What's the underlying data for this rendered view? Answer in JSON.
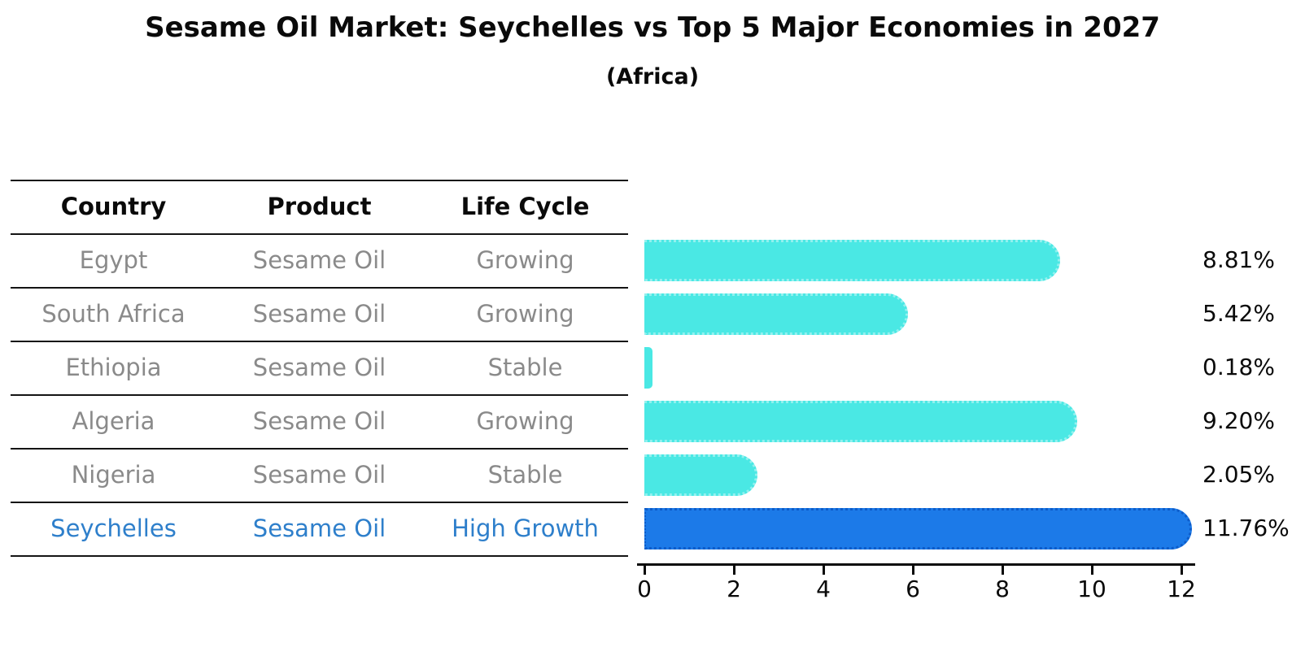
{
  "page": {
    "title": "Sesame Oil Market: Seychelles vs Top 5 Major Economies in 2027",
    "subtitle": "(Africa)"
  },
  "table": {
    "headers": [
      "Country",
      "Product",
      "Life Cycle"
    ],
    "rows": [
      {
        "country": "Egypt",
        "product": "Sesame Oil",
        "life_cycle": "Growing",
        "highlight": false
      },
      {
        "country": "South Africa",
        "product": "Sesame Oil",
        "life_cycle": "Growing",
        "highlight": false
      },
      {
        "country": "Ethiopia",
        "product": "Sesame Oil",
        "life_cycle": "Stable",
        "highlight": false
      },
      {
        "country": "Algeria",
        "product": "Sesame Oil",
        "life_cycle": "Growing",
        "highlight": false
      },
      {
        "country": "Nigeria",
        "product": "Sesame Oil",
        "life_cycle": "Stable",
        "highlight": false
      },
      {
        "country": "Seychelles",
        "product": "Sesame Oil",
        "life_cycle": "High Growth",
        "highlight": true
      }
    ]
  },
  "chart_data": {
    "type": "bar",
    "orientation": "horizontal",
    "title": "Sesame Oil Market: Seychelles vs Top 5 Major Economies in 2027",
    "subtitle": "(Africa)",
    "categories": [
      "Egypt",
      "South Africa",
      "Ethiopia",
      "Algeria",
      "Nigeria",
      "Seychelles"
    ],
    "values": [
      8.81,
      5.42,
      0.18,
      9.2,
      2.05,
      11.76
    ],
    "value_labels": [
      "8.81%",
      "5.42%",
      "0.18%",
      "9.20%",
      "2.05%",
      "11.76%"
    ],
    "xlabel": "",
    "ylabel": "",
    "xlim": [
      0,
      12.4
    ],
    "x_ticks": [
      0,
      2,
      4,
      6,
      8,
      10,
      12
    ],
    "grid": false,
    "legend": false,
    "highlight_index": 5,
    "colors": {
      "bar": "#4AE8E4",
      "highlight_bar": "#1C7AE8",
      "highlight_edge": "#0D5CC9",
      "highlight_text": "#2E7FCB",
      "table_text": "#8A8A8A",
      "heading_text": "#0A0A0A"
    }
  }
}
